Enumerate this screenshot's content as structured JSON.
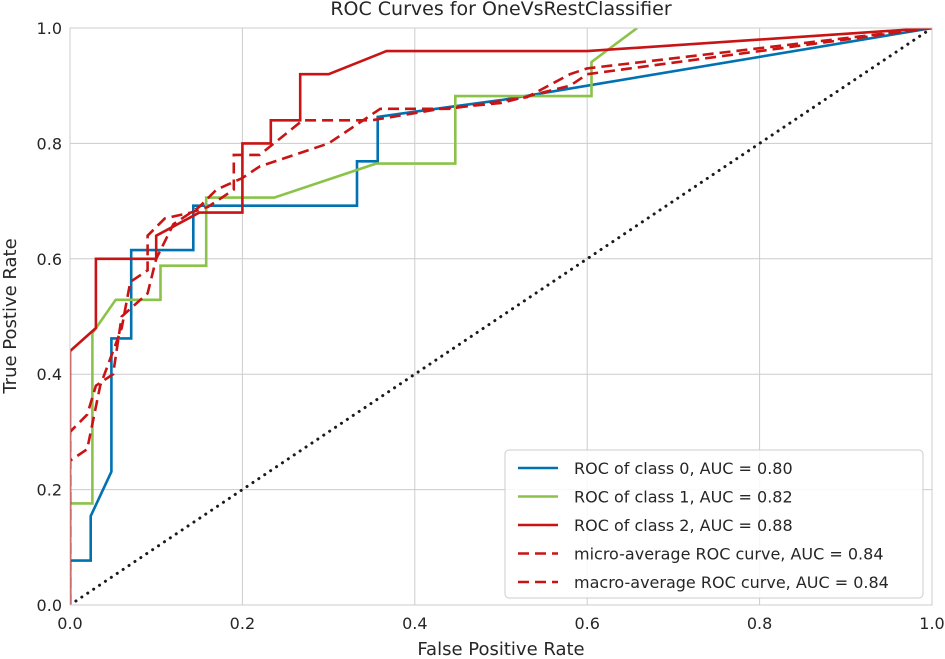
{
  "chart_data": {
    "type": "line",
    "title": "ROC Curves for OneVsRestClassifier",
    "xlabel": "False Positive Rate",
    "ylabel": "True Postive Rate",
    "xlim": [
      0.0,
      1.0
    ],
    "ylim": [
      0.0,
      1.0
    ],
    "x_ticks": [
      "0.0",
      "0.2",
      "0.4",
      "0.6",
      "0.8",
      "1.0"
    ],
    "y_ticks": [
      "0.0",
      "0.2",
      "0.4",
      "0.6",
      "0.8",
      "1.0"
    ],
    "grid": true,
    "legend_position": "bottom-right",
    "series": [
      {
        "name": "ROC of class 0, AUC = 0.80",
        "color": "#0072B2",
        "dash": "solid",
        "x": [
          0.0,
          0.0,
          0.024,
          0.024,
          0.048,
          0.048,
          0.071,
          0.071,
          0.143,
          0.143,
          0.333,
          0.333,
          0.357,
          0.357,
          0.4,
          0.5,
          0.6,
          1.0
        ],
        "y": [
          0.0,
          0.077,
          0.077,
          0.154,
          0.231,
          0.462,
          0.462,
          0.615,
          0.615,
          0.692,
          0.692,
          0.769,
          0.769,
          0.846,
          0.855,
          0.875,
          0.9,
          1.0
        ]
      },
      {
        "name": "ROC of class 1, AUC = 0.82",
        "color": "#8BC34A",
        "dash": "solid",
        "x": [
          0.0,
          0.0,
          0.026,
          0.026,
          0.053,
          0.105,
          0.105,
          0.158,
          0.158,
          0.237,
          0.355,
          0.355,
          0.447,
          0.447,
          0.605,
          0.605,
          0.658
        ],
        "y": [
          0.0,
          0.176,
          0.176,
          0.471,
          0.529,
          0.529,
          0.588,
          0.588,
          0.706,
          0.706,
          0.765,
          0.765,
          0.765,
          0.882,
          0.882,
          0.941,
          1.0
        ]
      },
      {
        "name": "ROC of class 2, AUC = 0.88",
        "color": "#C81414",
        "dash": "solid",
        "x": [
          0.0,
          0.0,
          0.03,
          0.03,
          0.1,
          0.1,
          0.15,
          0.17,
          0.2,
          0.2,
          0.233,
          0.233,
          0.267,
          0.267,
          0.3,
          0.367,
          0.367,
          0.6,
          1.0
        ],
        "y": [
          0.0,
          0.44,
          0.48,
          0.6,
          0.6,
          0.64,
          0.68,
          0.68,
          0.68,
          0.8,
          0.8,
          0.84,
          0.84,
          0.92,
          0.92,
          0.96,
          0.96,
          0.96,
          1.0
        ]
      },
      {
        "name": "micro-average ROC curve, AUC = 0.84",
        "color": "#C81414",
        "dash": "dashed",
        "x": [
          0.0,
          0.0,
          0.02,
          0.035,
          0.06,
          0.07,
          0.09,
          0.09,
          0.11,
          0.14,
          0.16,
          0.19,
          0.19,
          0.22,
          0.27,
          0.35,
          0.43,
          0.5,
          0.58,
          0.6,
          1.0
        ],
        "y": [
          0.0,
          0.25,
          0.27,
          0.38,
          0.48,
          0.56,
          0.58,
          0.64,
          0.67,
          0.68,
          0.69,
          0.72,
          0.78,
          0.78,
          0.84,
          0.84,
          0.86,
          0.87,
          0.9,
          0.92,
          1.0
        ]
      },
      {
        "name": "macro-average ROC curve, AUC = 0.84",
        "color": "#C81414",
        "dash": "dashed",
        "x": [
          0.0,
          0.0,
          0.02,
          0.03,
          0.05,
          0.06,
          0.09,
          0.1,
          0.12,
          0.15,
          0.17,
          0.2,
          0.22,
          0.3,
          0.36,
          0.44,
          0.53,
          0.58,
          0.6,
          1.0
        ],
        "y": [
          0.0,
          0.3,
          0.33,
          0.38,
          0.4,
          0.5,
          0.54,
          0.6,
          0.66,
          0.69,
          0.72,
          0.74,
          0.76,
          0.8,
          0.86,
          0.86,
          0.88,
          0.92,
          0.93,
          1.0
        ]
      }
    ],
    "reference_line": {
      "name": "diagonal",
      "x": [
        0.0,
        1.0
      ],
      "y": [
        0.0,
        1.0
      ],
      "style": "dotted",
      "color": "#1a1a1a"
    }
  }
}
